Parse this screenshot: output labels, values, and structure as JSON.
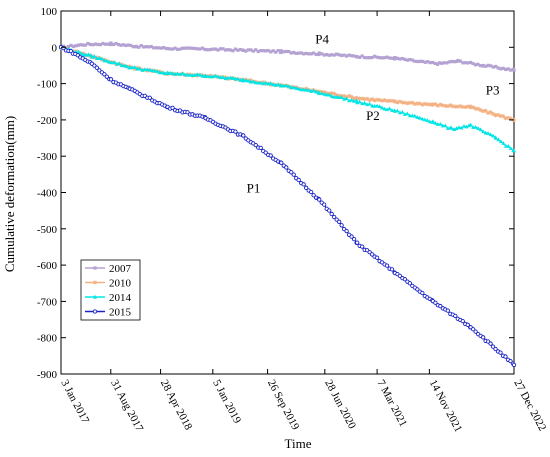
{
  "chart_data": {
    "type": "line",
    "title": "",
    "xlabel": "Time",
    "ylabel": "Cumulative deformation(mm)",
    "ylim": [
      -900,
      100
    ],
    "y_ticks": [
      100,
      0,
      -100,
      -200,
      -300,
      -400,
      -500,
      -600,
      -700,
      -800,
      -900
    ],
    "xlim": [
      "2017-01-03",
      "2022-12-27"
    ],
    "x_ticks": [
      {
        "date": "2017-01-03",
        "label": "3 Jan 2017"
      },
      {
        "date": "2017-08-31",
        "label": "31 Aug 2017"
      },
      {
        "date": "2018-04-28",
        "label": "28 Apr 2018"
      },
      {
        "date": "2019-01-05",
        "label": "5 Jan 2019"
      },
      {
        "date": "2019-09-26",
        "label": "26 Sep 2019"
      },
      {
        "date": "2020-06-28",
        "label": "28 Jun 2020"
      },
      {
        "date": "2021-03-07",
        "label": "7 Mar 2021"
      },
      {
        "date": "2021-11-14",
        "label": "14 Nov 2021"
      },
      {
        "date": "2022-12-27",
        "label": "27 Dec 2022"
      }
    ],
    "legend_position": "bottom-left",
    "series": [
      {
        "name": "2007",
        "color": "#b3a2d2",
        "marker": "square",
        "points": [
          [
            "2017-01-03",
            0
          ],
          [
            "2017-05-01",
            8
          ],
          [
            "2017-09-01",
            10
          ],
          [
            "2018-01-01",
            3
          ],
          [
            "2018-06-01",
            -3
          ],
          [
            "2018-12-01",
            -5
          ],
          [
            "2019-06-01",
            -8
          ],
          [
            "2019-12-01",
            -12
          ],
          [
            "2020-06-01",
            -18
          ],
          [
            "2020-12-01",
            -25
          ],
          [
            "2021-06-01",
            -30
          ],
          [
            "2021-10-01",
            -40
          ],
          [
            "2022-01-01",
            -45
          ],
          [
            "2022-04-01",
            -38
          ],
          [
            "2022-08-01",
            -50
          ],
          [
            "2022-12-27",
            -63
          ]
        ]
      },
      {
        "name": "2010",
        "color": "#f4b183",
        "marker": "star",
        "points": [
          [
            "2017-01-03",
            0
          ],
          [
            "2017-06-01",
            -25
          ],
          [
            "2017-12-01",
            -55
          ],
          [
            "2018-06-01",
            -72
          ],
          [
            "2018-12-01",
            -78
          ],
          [
            "2019-06-01",
            -90
          ],
          [
            "2019-12-01",
            -105
          ],
          [
            "2020-06-01",
            -122
          ],
          [
            "2020-12-01",
            -140
          ],
          [
            "2021-06-01",
            -150
          ],
          [
            "2021-12-01",
            -158
          ],
          [
            "2022-06-01",
            -165
          ],
          [
            "2022-12-27",
            -200
          ]
        ]
      },
      {
        "name": "2014",
        "color": "#00e5e5",
        "marker": "triangle",
        "points": [
          [
            "2017-01-03",
            0
          ],
          [
            "2017-06-01",
            -25
          ],
          [
            "2017-12-01",
            -55
          ],
          [
            "2018-06-01",
            -72
          ],
          [
            "2018-12-01",
            -78
          ],
          [
            "2019-06-01",
            -90
          ],
          [
            "2019-12-01",
            -105
          ],
          [
            "2020-06-01",
            -125
          ],
          [
            "2020-12-01",
            -150
          ],
          [
            "2021-06-01",
            -175
          ],
          [
            "2021-12-01",
            -205
          ],
          [
            "2022-03-01",
            -225
          ],
          [
            "2022-06-01",
            -215
          ],
          [
            "2022-10-01",
            -250
          ],
          [
            "2022-12-27",
            -285
          ]
        ]
      },
      {
        "name": "2015",
        "color": "#1a23c6",
        "marker": "circle",
        "points": [
          [
            "2017-01-03",
            0
          ],
          [
            "2017-03-01",
            -15
          ],
          [
            "2017-06-01",
            -45
          ],
          [
            "2017-09-01",
            -90
          ],
          [
            "2017-12-01",
            -115
          ],
          [
            "2018-06-01",
            -165
          ],
          [
            "2018-12-01",
            -195
          ],
          [
            "2019-06-01",
            -245
          ],
          [
            "2019-12-01",
            -320
          ],
          [
            "2020-06-01",
            -420
          ],
          [
            "2020-12-01",
            -540
          ],
          [
            "2021-06-01",
            -620
          ],
          [
            "2021-12-01",
            -700
          ],
          [
            "2022-06-01",
            -770
          ],
          [
            "2022-12-27",
            -875
          ]
        ]
      }
    ],
    "annotations": [
      {
        "text": "P4",
        "x": "2020-06-15",
        "y": 10
      },
      {
        "text": "P3",
        "x": "2022-09-15",
        "y": -130
      },
      {
        "text": "P2",
        "x": "2021-02-15",
        "y": -200
      },
      {
        "text": "P1",
        "x": "2019-07-20",
        "y": -400
      }
    ]
  }
}
